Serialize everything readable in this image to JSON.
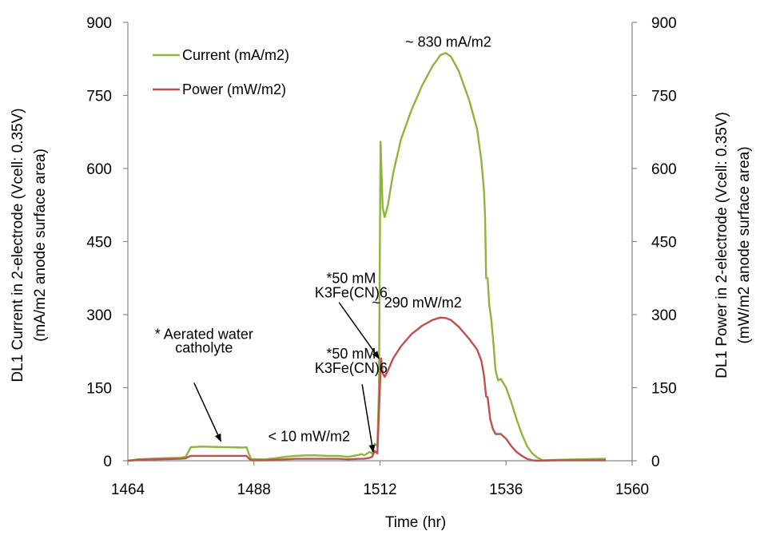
{
  "chart_data": {
    "type": "line",
    "xlabel": "Time (hr)",
    "ylabel_left": [
      "DL1 Current in 2-electrode (Vcell: 0.35V)",
      "(mA/m2 anode surface area)"
    ],
    "ylabel_right": [
      "DL1 Power in 2-electrode (Vcell: 0.35V)",
      "(mW/m2 anode surface area)"
    ],
    "xlim": [
      1464,
      1560
    ],
    "ylim_left": [
      0,
      900
    ],
    "ylim_right": [
      0,
      900
    ],
    "x_ticks": [
      "1464",
      "1488",
      "1512",
      "1536",
      "1560"
    ],
    "y_ticks_left": [
      "0",
      "150",
      "300",
      "450",
      "600",
      "750",
      "900"
    ],
    "y_ticks_right": [
      "0",
      "150",
      "300",
      "450",
      "600",
      "750",
      "900"
    ],
    "grid": false,
    "legend_position": "top-left",
    "series": [
      {
        "name": "Current (mA/m2)",
        "color": "#8DB53C",
        "axis": "left",
        "points": [
          [
            1464,
            0
          ],
          [
            1466,
            3
          ],
          [
            1470,
            5
          ],
          [
            1474,
            6
          ],
          [
            1475,
            8
          ],
          [
            1475.5,
            18
          ],
          [
            1476,
            28
          ],
          [
            1478,
            29
          ],
          [
            1482,
            28
          ],
          [
            1486,
            27
          ],
          [
            1486.6,
            28
          ],
          [
            1487,
            15
          ],
          [
            1487.5,
            3
          ],
          [
            1490,
            3
          ],
          [
            1492,
            5
          ],
          [
            1494,
            8
          ],
          [
            1496,
            10
          ],
          [
            1498,
            11
          ],
          [
            1500,
            11
          ],
          [
            1502,
            10
          ],
          [
            1504,
            10
          ],
          [
            1506,
            8
          ],
          [
            1508,
            12
          ],
          [
            1508.5,
            14
          ],
          [
            1509,
            11
          ],
          [
            1510,
            18
          ],
          [
            1510.5,
            15
          ],
          [
            1511,
            35
          ],
          [
            1511.5,
            30
          ],
          [
            1511.8,
            150
          ],
          [
            1512.1,
            655
          ],
          [
            1512.5,
            520
          ],
          [
            1512.9,
            500
          ],
          [
            1513.5,
            525
          ],
          [
            1514.5,
            590
          ],
          [
            1516,
            660
          ],
          [
            1518,
            720
          ],
          [
            1520,
            770
          ],
          [
            1522,
            810
          ],
          [
            1523.5,
            833
          ],
          [
            1524.5,
            837
          ],
          [
            1525.5,
            830
          ],
          [
            1527,
            800
          ],
          [
            1529,
            740
          ],
          [
            1530.5,
            680
          ],
          [
            1531.3,
            615
          ],
          [
            1531.8,
            555
          ],
          [
            1532,
            500
          ],
          [
            1532.2,
            375
          ],
          [
            1532.5,
            375
          ],
          [
            1532.8,
            320
          ],
          [
            1533.2,
            290
          ],
          [
            1533.6,
            240
          ],
          [
            1534,
            185
          ],
          [
            1534.5,
            165
          ],
          [
            1535,
            168
          ],
          [
            1536,
            150
          ],
          [
            1537,
            120
          ],
          [
            1538,
            85
          ],
          [
            1539,
            55
          ],
          [
            1540,
            30
          ],
          [
            1541,
            15
          ],
          [
            1542,
            6
          ],
          [
            1543,
            1
          ],
          [
            1546,
            2
          ],
          [
            1550,
            3
          ],
          [
            1554,
            4
          ],
          [
            1555,
            4
          ]
        ]
      },
      {
        "name": "Power (mW/m2)",
        "color": "#C0504D",
        "axis": "right",
        "points": [
          [
            1464,
            0
          ],
          [
            1466,
            2
          ],
          [
            1470,
            3
          ],
          [
            1474,
            4
          ],
          [
            1475,
            5
          ],
          [
            1475.5,
            8
          ],
          [
            1476,
            10
          ],
          [
            1482,
            10
          ],
          [
            1486,
            10
          ],
          [
            1486.6,
            10
          ],
          [
            1487,
            5
          ],
          [
            1487.5,
            1
          ],
          [
            1490,
            1
          ],
          [
            1492,
            2
          ],
          [
            1494,
            3
          ],
          [
            1496,
            4
          ],
          [
            1498,
            4
          ],
          [
            1500,
            4
          ],
          [
            1502,
            4
          ],
          [
            1504,
            4
          ],
          [
            1506,
            3
          ],
          [
            1508,
            4
          ],
          [
            1509,
            4
          ],
          [
            1510,
            6
          ],
          [
            1510.5,
            8
          ],
          [
            1511,
            20
          ],
          [
            1511.5,
            15
          ],
          [
            1511.8,
            100
          ],
          [
            1512.2,
            210
          ],
          [
            1512.5,
            180
          ],
          [
            1512.9,
            172
          ],
          [
            1513.5,
            185
          ],
          [
            1514.5,
            210
          ],
          [
            1516,
            235
          ],
          [
            1518,
            260
          ],
          [
            1520,
            277
          ],
          [
            1522,
            289
          ],
          [
            1523.5,
            294
          ],
          [
            1524.5,
            293
          ],
          [
            1525.5,
            289
          ],
          [
            1527,
            275
          ],
          [
            1529,
            250
          ],
          [
            1530.5,
            228
          ],
          [
            1531.3,
            205
          ],
          [
            1531.8,
            175
          ],
          [
            1532.2,
            132
          ],
          [
            1532.5,
            130
          ],
          [
            1533,
            85
          ],
          [
            1533.5,
            65
          ],
          [
            1534,
            55
          ],
          [
            1535,
            55
          ],
          [
            1536,
            45
          ],
          [
            1537,
            30
          ],
          [
            1538,
            18
          ],
          [
            1539,
            10
          ],
          [
            1540,
            4
          ],
          [
            1541,
            1
          ],
          [
            1542,
            0
          ],
          [
            1546,
            1
          ],
          [
            1550,
            1
          ],
          [
            1554,
            1
          ],
          [
            1555,
            1
          ]
        ]
      }
    ],
    "annotations": [
      {
        "text": "~ 830 mA/m2",
        "x": 1525,
        "y": 850
      },
      {
        "text": "~ 290 mW/m2",
        "x": 1519,
        "y": 315
      },
      {
        "text": "* Aerated water",
        "x": 1478.5,
        "y": 250
      },
      {
        "text": "catholyte",
        "x": 1478.5,
        "y": 222
      },
      {
        "text": "*50 mM",
        "x": 1506.5,
        "y": 365
      },
      {
        "text": "K3Fe(CN)6",
        "x": 1506.5,
        "y": 335
      },
      {
        "text": "*50 mM",
        "x": 1506.5,
        "y": 210
      },
      {
        "text": "K3Fe(CN)6",
        "x": 1506.5,
        "y": 180
      },
      {
        "text": "< 10 mW/m2",
        "x": 1498.5,
        "y": 40
      }
    ],
    "arrows": [
      {
        "from": [
          1504.2,
          325
        ],
        "to": [
          1511.8,
          210
        ]
      },
      {
        "from": [
          1508.6,
          157
        ],
        "to": [
          1510.7,
          18
        ]
      },
      {
        "from": [
          1476.6,
          160
        ],
        "to": [
          1481.7,
          40
        ]
      }
    ]
  }
}
